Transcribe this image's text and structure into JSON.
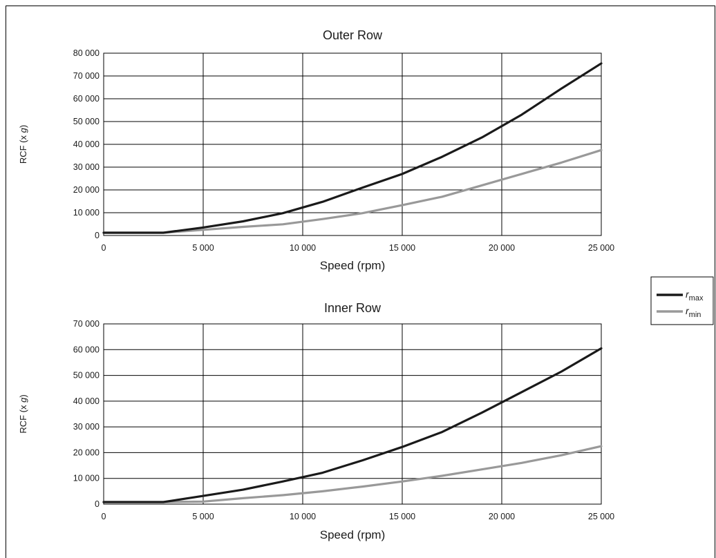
{
  "chart_data": [
    {
      "type": "line",
      "title": "Outer Row",
      "xlabel": "Speed (rpm)",
      "ylabel_prefix": "RCF (x ",
      "ylabel_var": "g",
      "ylabel_suffix": ")",
      "xlim": [
        0,
        25000
      ],
      "ylim": [
        0,
        80000
      ],
      "x_ticks": [
        0,
        5000,
        10000,
        15000,
        20000,
        25000
      ],
      "x_tick_labels": [
        "0",
        "5 000",
        "10 000",
        "15 000",
        "20 000",
        "25 000"
      ],
      "y_ticks": [
        0,
        10000,
        20000,
        30000,
        40000,
        50000,
        60000,
        70000,
        80000
      ],
      "y_tick_labels": [
        "0",
        "10 000",
        "20 000",
        "30 000",
        "40 000",
        "50 000",
        "60 000",
        "70 000",
        "80 000"
      ],
      "grid": true,
      "series": [
        {
          "key": "rmax",
          "x": [
            0,
            1000,
            3000,
            5000,
            7000,
            9000,
            11000,
            13000,
            15000,
            17000,
            19000,
            21000,
            23000,
            25000
          ],
          "y": [
            1200,
            1200,
            1200,
            3500,
            6200,
            9800,
            14800,
            21000,
            27000,
            34500,
            43000,
            53000,
            64500,
            75500
          ]
        },
        {
          "key": "rmin",
          "x": [
            0,
            1000,
            3000,
            5000,
            7000,
            9000,
            11000,
            13000,
            15000,
            17000,
            19000,
            21000,
            23000,
            25000
          ],
          "y": [
            1200,
            1200,
            1200,
            2500,
            3800,
            4900,
            7200,
            9800,
            13300,
            17000,
            22000,
            27000,
            32000,
            37500
          ]
        }
      ]
    },
    {
      "type": "line",
      "title": "Inner Row",
      "xlabel": "Speed (rpm)",
      "ylabel_prefix": "RCF (x ",
      "ylabel_var": "g",
      "ylabel_suffix": ")",
      "xlim": [
        0,
        25000
      ],
      "ylim": [
        0,
        70000
      ],
      "x_ticks": [
        0,
        5000,
        10000,
        15000,
        20000,
        25000
      ],
      "x_tick_labels": [
        "0",
        "5 000",
        "10 000",
        "15 000",
        "20 000",
        "25 000"
      ],
      "y_ticks": [
        0,
        10000,
        20000,
        30000,
        40000,
        50000,
        60000,
        70000
      ],
      "y_tick_labels": [
        "0",
        "10 000",
        "20 000",
        "30 000",
        "40 000",
        "50 000",
        "60 000",
        "70 000"
      ],
      "grid": true,
      "series": [
        {
          "key": "rmax",
          "x": [
            0,
            1000,
            3000,
            5000,
            7000,
            9000,
            11000,
            13000,
            15000,
            17000,
            19000,
            21000,
            23000,
            25000
          ],
          "y": [
            800,
            800,
            800,
            3200,
            5600,
            8800,
            12200,
            17000,
            22200,
            28000,
            35500,
            43500,
            51500,
            60500
          ]
        },
        {
          "key": "rmin",
          "x": [
            0,
            1000,
            3000,
            5000,
            7000,
            9000,
            11000,
            13000,
            15000,
            17000,
            19000,
            21000,
            23000,
            25000
          ],
          "y": [
            800,
            800,
            800,
            1000,
            2300,
            3500,
            5000,
            6800,
            8800,
            11000,
            13500,
            16000,
            19000,
            22500
          ]
        }
      ]
    }
  ],
  "legend": {
    "placement": "right",
    "items": [
      {
        "key": "rmax",
        "symbol": "r",
        "subscript": "max",
        "color": "#1a1a1a"
      },
      {
        "key": "rmin",
        "symbol": "r",
        "subscript": "min",
        "color": "#999999"
      }
    ]
  }
}
